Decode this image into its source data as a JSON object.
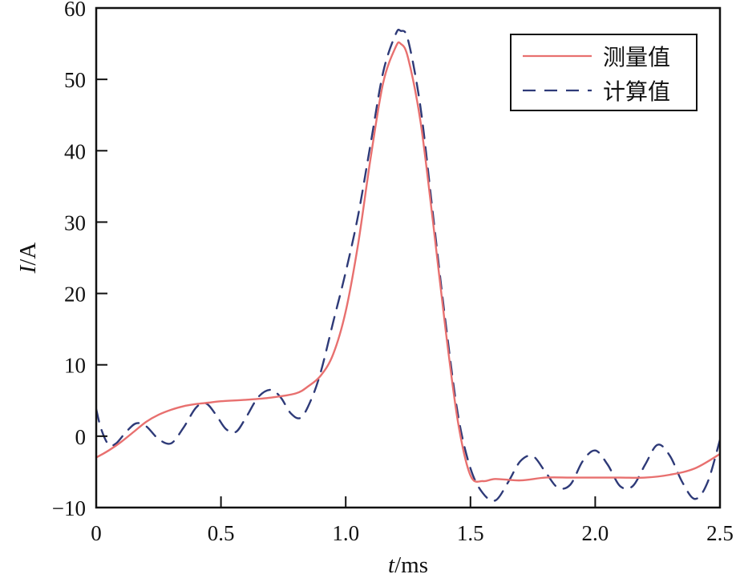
{
  "chart_data": {
    "type": "line",
    "title": "",
    "xlabel": "t/ms",
    "xlabel_italic_part": "t",
    "xlabel_unit": "/ms",
    "ylabel": "I/A",
    "ylabel_italic_part": "I",
    "ylabel_unit": "/A",
    "xlim": [
      0,
      2.5
    ],
    "ylim": [
      -10,
      60
    ],
    "x_ticks": [
      0,
      0.5,
      1.0,
      1.5,
      2.0,
      2.5
    ],
    "x_tick_labels": [
      "0",
      "0.5",
      "1.0",
      "1.5",
      "2.0",
      "2.5"
    ],
    "y_ticks": [
      -10,
      0,
      10,
      20,
      30,
      40,
      50,
      60
    ],
    "y_tick_labels": [
      "−10",
      "0",
      "10",
      "20",
      "30",
      "40",
      "50",
      "60"
    ],
    "grid": false,
    "legend_position": "upper right",
    "series": [
      {
        "name": "测量值",
        "color": "#e8706f",
        "style": "solid",
        "x": [
          0,
          0.05,
          0.1,
          0.15,
          0.2,
          0.25,
          0.3,
          0.35,
          0.4,
          0.45,
          0.5,
          0.6,
          0.7,
          0.8,
          0.85,
          0.9,
          0.95,
          1.0,
          1.05,
          1.1,
          1.15,
          1.2,
          1.22,
          1.25,
          1.3,
          1.35,
          1.4,
          1.45,
          1.5,
          1.55,
          1.6,
          1.7,
          1.8,
          1.9,
          2.0,
          2.1,
          2.2,
          2.3,
          2.4,
          2.5
        ],
        "values": [
          -3.0,
          -2.0,
          -0.8,
          0.6,
          2.0,
          3.0,
          3.7,
          4.2,
          4.5,
          4.7,
          4.9,
          5.1,
          5.4,
          6.0,
          7.0,
          8.5,
          11.5,
          17.5,
          27.0,
          39.0,
          49.5,
          54.5,
          55.0,
          53.0,
          44.0,
          30.0,
          15.0,
          2.0,
          -5.5,
          -6.3,
          -6.0,
          -6.2,
          -5.8,
          -5.8,
          -5.8,
          -5.8,
          -5.8,
          -5.4,
          -4.5,
          -2.5
        ]
      },
      {
        "name": "计算值",
        "color": "#2e3a78",
        "style": "dashed",
        "x": [
          0,
          0.02,
          0.05,
          0.08,
          0.12,
          0.16,
          0.2,
          0.25,
          0.3,
          0.35,
          0.4,
          0.44,
          0.48,
          0.52,
          0.56,
          0.6,
          0.65,
          0.7,
          0.74,
          0.78,
          0.82,
          0.86,
          0.9,
          0.95,
          1.0,
          1.05,
          1.1,
          1.15,
          1.2,
          1.22,
          1.25,
          1.3,
          1.35,
          1.4,
          1.45,
          1.5,
          1.55,
          1.6,
          1.65,
          1.7,
          1.75,
          1.8,
          1.85,
          1.9,
          1.95,
          2.0,
          2.05,
          2.1,
          2.15,
          2.2,
          2.25,
          2.3,
          2.35,
          2.4,
          2.45,
          2.5
        ],
        "values": [
          3.8,
          1.0,
          -1.2,
          -1.0,
          0.6,
          1.8,
          1.4,
          -0.4,
          -1.0,
          1.2,
          4.0,
          4.6,
          3.0,
          1.0,
          0.6,
          2.6,
          5.5,
          6.5,
          5.4,
          3.2,
          2.6,
          5.0,
          9.0,
          16.0,
          23.0,
          31.0,
          41.0,
          51.0,
          56.3,
          56.8,
          55.5,
          46.0,
          31.0,
          16.0,
          3.0,
          -4.5,
          -8.0,
          -9.0,
          -6.5,
          -3.5,
          -2.8,
          -5.0,
          -7.2,
          -6.8,
          -3.5,
          -2.0,
          -4.0,
          -7.0,
          -7.0,
          -4.0,
          -1.2,
          -2.8,
          -6.5,
          -8.8,
          -6.5,
          -0.5
        ]
      }
    ]
  },
  "legend": {
    "items": [
      {
        "label": "测量值",
        "color": "#e8706f",
        "style": "solid"
      },
      {
        "label": "计算值",
        "color": "#2e3a78",
        "style": "dashed"
      }
    ]
  }
}
